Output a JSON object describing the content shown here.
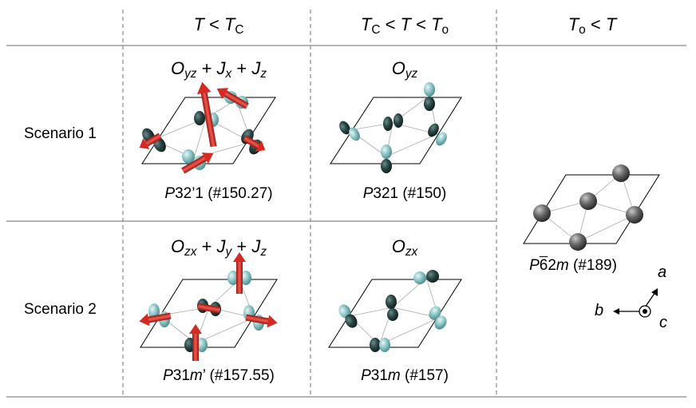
{
  "header": {
    "col1": "T < TC",
    "col2": "TC < T < To",
    "col3": "To < T"
  },
  "rows": [
    {
      "label": "Scenario 1",
      "col1_formula": "Oyz + Jx + Jz",
      "col1_group": "P32’1 (#150.27)",
      "col2_formula": "Oyz",
      "col2_group": "P321 (#150)"
    },
    {
      "label": "Scenario 2",
      "col1_formula": "Ozx + Jy + Jz",
      "col1_group": "P31m’ (#157.55)",
      "col2_formula": "Ozx",
      "col2_group": "P31m (#157)"
    }
  ],
  "high_temp_group": "P62m (#189)",
  "axes": {
    "a": "a",
    "b": "b",
    "c": "c"
  },
  "colors": {
    "orbital_light": "#7fbcc0",
    "orbital_dark": "#1e3a38",
    "moment": "#d42a22",
    "atom": "#5a5a5a",
    "grid_line": "#888888"
  }
}
